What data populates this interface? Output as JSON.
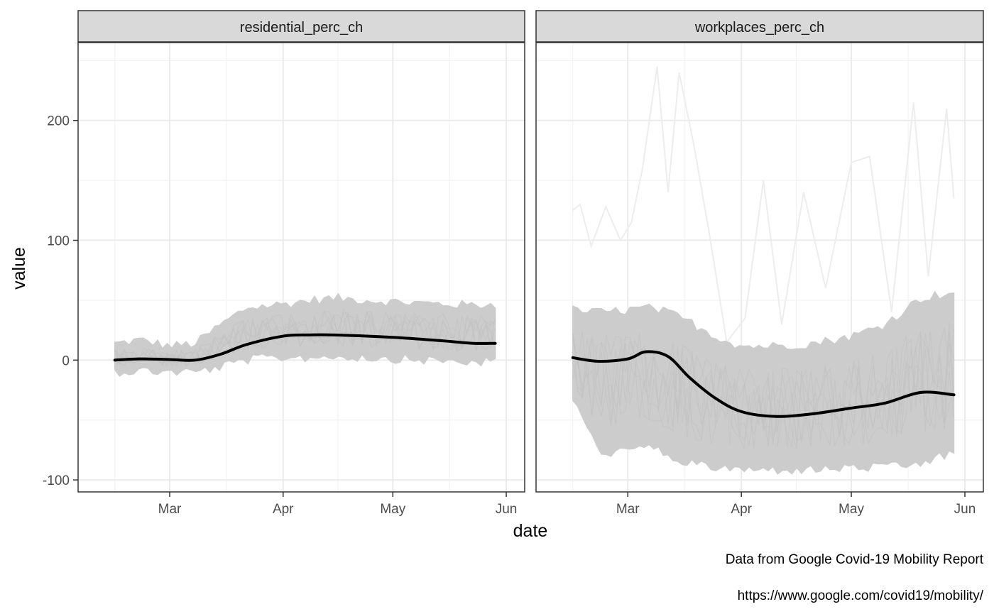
{
  "chart_data": {
    "type": "line",
    "facets": [
      {
        "strip": "residential_perc_ch",
        "smooth": {
          "x": [
            "2020-02-15",
            "2020-02-22",
            "2020-03-01",
            "2020-03-08",
            "2020-03-15",
            "2020-03-22",
            "2020-04-01",
            "2020-04-08",
            "2020-04-15",
            "2020-05-01",
            "2020-05-15",
            "2020-05-23",
            "2020-05-29"
          ],
          "y": [
            0,
            1,
            0.5,
            0,
            5,
            13,
            20,
            21,
            21,
            19,
            16,
            14,
            14
          ]
        },
        "band": {
          "x": [
            "2020-02-15",
            "2020-02-22",
            "2020-03-01",
            "2020-03-08",
            "2020-03-15",
            "2020-03-22",
            "2020-04-01",
            "2020-04-08",
            "2020-04-15",
            "2020-05-01",
            "2020-05-15",
            "2020-05-23",
            "2020-05-29"
          ],
          "upper": [
            12,
            15,
            10,
            12,
            28,
            42,
            45,
            48,
            50,
            47,
            45,
            44,
            45
          ],
          "lower": [
            -8,
            -7,
            -8,
            -8,
            -4,
            2,
            4,
            4,
            5,
            3,
            1,
            0,
            0
          ]
        }
      },
      {
        "strip": "workplaces_perc_ch",
        "smooth": {
          "x": [
            "2020-02-15",
            "2020-02-22",
            "2020-03-01",
            "2020-03-06",
            "2020-03-12",
            "2020-03-18",
            "2020-03-25",
            "2020-04-01",
            "2020-04-10",
            "2020-04-20",
            "2020-05-01",
            "2020-05-10",
            "2020-05-20",
            "2020-05-29"
          ],
          "y": [
            2,
            -1,
            1,
            7,
            3,
            -15,
            -32,
            -43,
            -47,
            -45,
            -40,
            -36,
            -27,
            -29
          ]
        },
        "band": {
          "x": [
            "2020-02-15",
            "2020-02-22",
            "2020-03-01",
            "2020-03-06",
            "2020-03-12",
            "2020-03-18",
            "2020-03-25",
            "2020-04-01",
            "2020-04-10",
            "2020-04-20",
            "2020-05-01",
            "2020-05-10",
            "2020-05-20",
            "2020-05-29"
          ],
          "upper": [
            40,
            38,
            40,
            42,
            38,
            30,
            18,
            10,
            10,
            12,
            18,
            28,
            50,
            55
          ],
          "lower": [
            -30,
            -75,
            -75,
            -70,
            -78,
            -85,
            -88,
            -90,
            -90,
            -90,
            -88,
            -88,
            -85,
            -75
          ]
        },
        "outlier": {
          "x": [
            "2020-02-15",
            "2020-02-17",
            "2020-02-20",
            "2020-02-24",
            "2020-02-28",
            "2020-03-02",
            "2020-03-05",
            "2020-03-09",
            "2020-03-12",
            "2020-03-15",
            "2020-03-19",
            "2020-03-23",
            "2020-03-28",
            "2020-04-02",
            "2020-04-07",
            "2020-04-12",
            "2020-04-18",
            "2020-04-24",
            "2020-05-01",
            "2020-05-06",
            "2020-05-12",
            "2020-05-18",
            "2020-05-22",
            "2020-05-27",
            "2020-05-29"
          ],
          "y": [
            125,
            130,
            95,
            128,
            100,
            115,
            160,
            245,
            140,
            240,
            180,
            110,
            15,
            35,
            150,
            30,
            140,
            60,
            165,
            170,
            40,
            215,
            70,
            210,
            135
          ]
        }
      }
    ],
    "x_ticks": [
      "Mar",
      "Apr",
      "May",
      "Jun"
    ],
    "x_tick_dates": [
      "2020-03-01",
      "2020-04-01",
      "2020-05-01",
      "2020-06-01"
    ],
    "x_range": [
      "2020-02-10",
      "2020-06-01"
    ],
    "y_ticks": [
      "-100",
      "0",
      "100",
      "200"
    ],
    "y_tick_values": [
      -100,
      0,
      100,
      200
    ],
    "ylim": [
      -110,
      265
    ],
    "xlabel": "date",
    "ylabel": "value",
    "grid": true,
    "colors": {
      "smooth": "#000000",
      "band": "#cccccc",
      "outlier": "#ededed",
      "strip_bg": "#d9d9d9",
      "strip_border": "#333333",
      "grid_major": "#ebebeb",
      "grid_minor": "#f2f2f2",
      "panel_border": "#333333"
    }
  },
  "caption": {
    "line1": "Data from Google Covid-19 Mobility Report",
    "line2": "https://www.google.com/covid19/mobility/"
  }
}
